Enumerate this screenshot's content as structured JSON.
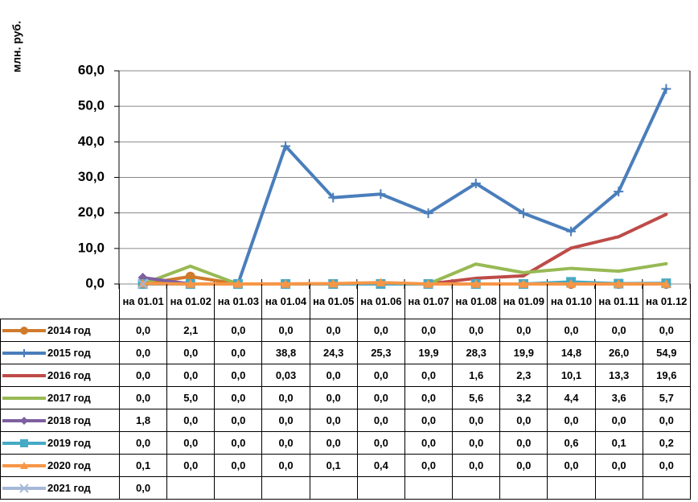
{
  "chart_data": {
    "type": "line",
    "y_label": "млн. руб.",
    "categories": [
      "на 01.01",
      "на 01.02",
      "на 01.03",
      "на 01.04",
      "на 01.05",
      "на 01.06",
      "на 01.07",
      "на 01.08",
      "на 01.09",
      "на 01.10",
      "на 01.11",
      "на 01.12"
    ],
    "ylim": [
      0,
      60
    ],
    "yticks": [
      {
        "value": 0,
        "label": "0,0"
      },
      {
        "value": 10,
        "label": "10,0"
      },
      {
        "value": 20,
        "label": "20,0"
      },
      {
        "value": 30,
        "label": "30,0"
      },
      {
        "value": 40,
        "label": "40,0"
      },
      {
        "value": 50,
        "label": "50,0"
      },
      {
        "value": 60,
        "label": "60,0"
      }
    ],
    "grid": true,
    "series": [
      {
        "name": "2014 год",
        "color": "#d07a2c",
        "marker": "circle",
        "values": [
          0,
          2.1,
          0,
          0,
          0,
          0,
          0,
          0,
          0,
          0,
          0,
          0
        ],
        "value_labels": [
          "0,0",
          "2,1",
          "0,0",
          "0,0",
          "0,0",
          "0,0",
          "0,0",
          "0,0",
          "0,0",
          "0,0",
          "0,0",
          "0,0"
        ]
      },
      {
        "name": "2015 год",
        "color": "#4a7ebb",
        "marker": "plus",
        "values": [
          0,
          0,
          0,
          38.8,
          24.3,
          25.3,
          19.9,
          28.3,
          19.9,
          14.8,
          26.0,
          54.9
        ],
        "value_labels": [
          "0,0",
          "0,0",
          "0,0",
          "38,8",
          "24,3",
          "25,3",
          "19,9",
          "28,3",
          "19,9",
          "14,8",
          "26,0",
          "54,9"
        ]
      },
      {
        "name": "2016 год",
        "color": "#be4b48",
        "marker": "none",
        "values": [
          0,
          0,
          0,
          0.03,
          0,
          0,
          0,
          1.6,
          2.3,
          10.1,
          13.3,
          19.6
        ],
        "value_labels": [
          "0,0",
          "0,0",
          "0,0",
          "0,03",
          "0,0",
          "0,0",
          "0,0",
          "1,6",
          "2,3",
          "10,1",
          "13,3",
          "19,6"
        ]
      },
      {
        "name": "2017 год",
        "color": "#98b954",
        "marker": "none",
        "values": [
          0,
          5.0,
          0,
          0,
          0,
          0,
          0,
          5.6,
          3.2,
          4.4,
          3.6,
          5.7
        ],
        "value_labels": [
          "0,0",
          "5,0",
          "0,0",
          "0,0",
          "0,0",
          "0,0",
          "0,0",
          "5,6",
          "3,2",
          "4,4",
          "3,6",
          "5,7"
        ]
      },
      {
        "name": "2018 год",
        "color": "#7d60a0",
        "marker": "diamond",
        "values": [
          1.8,
          0,
          0,
          0,
          0,
          0,
          0,
          0,
          0,
          0,
          0,
          0
        ],
        "value_labels": [
          "1,8",
          "0,0",
          "0,0",
          "0,0",
          "0,0",
          "0,0",
          "0,0",
          "0,0",
          "0,0",
          "0,0",
          "0,0",
          "0,0"
        ]
      },
      {
        "name": "2019 год",
        "color": "#46aac5",
        "marker": "square",
        "values": [
          0,
          0,
          0,
          0,
          0,
          0,
          0,
          0,
          0,
          0.6,
          0.1,
          0.2
        ],
        "value_labels": [
          "0,0",
          "0,0",
          "0,0",
          "0,0",
          "0,0",
          "0,0",
          "0,0",
          "0,0",
          "0,0",
          "0,6",
          "0,1",
          "0,2"
        ]
      },
      {
        "name": "2020 год",
        "color": "#f79646",
        "marker": "triangle",
        "values": [
          0.1,
          0,
          0,
          0,
          0.1,
          0.4,
          0,
          0,
          0,
          0,
          0,
          0
        ],
        "value_labels": [
          "0,1",
          "0,0",
          "0,0",
          "0,0",
          "0,1",
          "0,4",
          "0,0",
          "0,0",
          "0,0",
          "0,0",
          "0,0",
          "0,0"
        ]
      },
      {
        "name": "2021 год",
        "color": "#a5b8d8",
        "marker": "x",
        "values": [
          0,
          null,
          null,
          null,
          null,
          null,
          null,
          null,
          null,
          null,
          null,
          null
        ],
        "value_labels": [
          "0,0",
          null,
          null,
          null,
          null,
          null,
          null,
          null,
          null,
          null,
          null,
          null
        ]
      }
    ]
  }
}
